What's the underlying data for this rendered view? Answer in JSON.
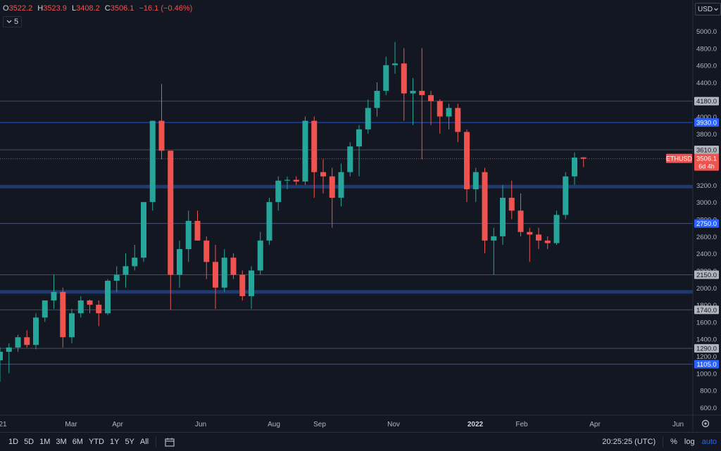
{
  "header": {
    "open_label": "O",
    "open": "3522.2",
    "high_label": "H",
    "high": "3523.9",
    "low_label": "L",
    "low": "3408.2",
    "close_label": "C",
    "close": "3506.1",
    "change": "−16.1 (−0.46%)",
    "indicator_count": "5",
    "currency": "USD"
  },
  "colors": {
    "background": "#131722",
    "up": "#26a69a",
    "down": "#ef5350",
    "grid": "#2a2e39",
    "thin_level": "#787b86",
    "blue_level": "#2962ff",
    "band_level": "#1e3a70"
  },
  "chart_data": {
    "type": "candlestick",
    "symbol": "ETHUSD",
    "y_range": [
      500,
      5200
    ],
    "y_ticks": [
      5000,
      4800,
      4600,
      4400,
      4200,
      4000,
      3800,
      3600,
      3400,
      3200,
      3000,
      2800,
      2600,
      2400,
      2200,
      2000,
      1800,
      1600,
      1400,
      1200,
      1000,
      800,
      600
    ],
    "x_labels": [
      "21",
      "Mar",
      "Apr",
      "Jun",
      "Aug",
      "Sep",
      "Nov",
      "2022",
      "Feb",
      "Apr",
      "Jun"
    ],
    "candles": [
      {
        "o": 1150,
        "h": 1300,
        "l": 900,
        "c": 1250
      },
      {
        "o": 1250,
        "h": 1350,
        "l": 1000,
        "c": 1300
      },
      {
        "o": 1300,
        "h": 1450,
        "l": 1250,
        "c": 1420
      },
      {
        "o": 1420,
        "h": 1500,
        "l": 1300,
        "c": 1330
      },
      {
        "o": 1330,
        "h": 1700,
        "l": 1280,
        "c": 1650
      },
      {
        "o": 1650,
        "h": 1850,
        "l": 1600,
        "c": 1850
      },
      {
        "o": 1850,
        "h": 2150,
        "l": 1750,
        "c": 1950
      },
      {
        "o": 1950,
        "h": 2000,
        "l": 1300,
        "c": 1420
      },
      {
        "o": 1420,
        "h": 1750,
        "l": 1350,
        "c": 1700
      },
      {
        "o": 1700,
        "h": 1900,
        "l": 1650,
        "c": 1850
      },
      {
        "o": 1850,
        "h": 1860,
        "l": 1700,
        "c": 1800
      },
      {
        "o": 1800,
        "h": 1850,
        "l": 1550,
        "c": 1700
      },
      {
        "o": 1700,
        "h": 2100,
        "l": 1680,
        "c": 2080
      },
      {
        "o": 2080,
        "h": 2250,
        "l": 1950,
        "c": 2150
      },
      {
        "o": 2150,
        "h": 2400,
        "l": 2000,
        "c": 2250
      },
      {
        "o": 2250,
        "h": 2500,
        "l": 2200,
        "c": 2350
      },
      {
        "o": 2350,
        "h": 3000,
        "l": 2300,
        "c": 3000
      },
      {
        "o": 3000,
        "h": 3950,
        "l": 2900,
        "c": 3950
      },
      {
        "o": 3950,
        "h": 4380,
        "l": 3500,
        "c": 3600
      },
      {
        "o": 3600,
        "h": 3600,
        "l": 1740,
        "c": 2150
      },
      {
        "o": 2150,
        "h": 2550,
        "l": 2000,
        "c": 2450
      },
      {
        "o": 2450,
        "h": 2900,
        "l": 2300,
        "c": 2780
      },
      {
        "o": 2780,
        "h": 2900,
        "l": 2550,
        "c": 2550
      },
      {
        "o": 2550,
        "h": 2600,
        "l": 2100,
        "c": 2300
      },
      {
        "o": 2300,
        "h": 2500,
        "l": 1750,
        "c": 2000
      },
      {
        "o": 2000,
        "h": 2450,
        "l": 1950,
        "c": 2350
      },
      {
        "o": 2350,
        "h": 2400,
        "l": 2100,
        "c": 2150
      },
      {
        "o": 2150,
        "h": 2200,
        "l": 1850,
        "c": 1900
      },
      {
        "o": 1900,
        "h": 2250,
        "l": 1750,
        "c": 2200
      },
      {
        "o": 2200,
        "h": 2650,
        "l": 2150,
        "c": 2550
      },
      {
        "o": 2550,
        "h": 3050,
        "l": 2500,
        "c": 3000
      },
      {
        "o": 3000,
        "h": 3300,
        "l": 2900,
        "c": 3250
      },
      {
        "o": 3250,
        "h": 3300,
        "l": 3150,
        "c": 3260
      },
      {
        "o": 3260,
        "h": 3300,
        "l": 3200,
        "c": 3240
      },
      {
        "o": 3240,
        "h": 4000,
        "l": 3200,
        "c": 3950
      },
      {
        "o": 3950,
        "h": 4000,
        "l": 3050,
        "c": 3350
      },
      {
        "o": 3350,
        "h": 3500,
        "l": 3100,
        "c": 3300
      },
      {
        "o": 3300,
        "h": 3400,
        "l": 2700,
        "c": 3050
      },
      {
        "o": 3050,
        "h": 3450,
        "l": 2950,
        "c": 3350
      },
      {
        "o": 3350,
        "h": 3700,
        "l": 3300,
        "c": 3650
      },
      {
        "o": 3650,
        "h": 3900,
        "l": 3300,
        "c": 3850
      },
      {
        "o": 3850,
        "h": 4200,
        "l": 3800,
        "c": 4100
      },
      {
        "o": 4100,
        "h": 4400,
        "l": 4000,
        "c": 4300
      },
      {
        "o": 4300,
        "h": 4700,
        "l": 4250,
        "c": 4600
      },
      {
        "o": 4600,
        "h": 4870,
        "l": 4500,
        "c": 4620
      },
      {
        "o": 4620,
        "h": 4800,
        "l": 3950,
        "c": 4270
      },
      {
        "o": 4270,
        "h": 4450,
        "l": 3900,
        "c": 4300
      },
      {
        "o": 4300,
        "h": 4800,
        "l": 3500,
        "c": 4250
      },
      {
        "o": 4250,
        "h": 4300,
        "l": 3900,
        "c": 4180
      },
      {
        "o": 4180,
        "h": 4200,
        "l": 3800,
        "c": 4000
      },
      {
        "o": 4000,
        "h": 4150,
        "l": 3850,
        "c": 4100
      },
      {
        "o": 4100,
        "h": 4150,
        "l": 3700,
        "c": 3820
      },
      {
        "o": 3820,
        "h": 3850,
        "l": 3000,
        "c": 3150
      },
      {
        "o": 3150,
        "h": 3400,
        "l": 3000,
        "c": 3350
      },
      {
        "o": 3350,
        "h": 3400,
        "l": 2400,
        "c": 2550
      },
      {
        "o": 2550,
        "h": 2700,
        "l": 2150,
        "c": 2600
      },
      {
        "o": 2600,
        "h": 3200,
        "l": 2500,
        "c": 3050
      },
      {
        "o": 3050,
        "h": 3250,
        "l": 2800,
        "c": 2900
      },
      {
        "o": 2900,
        "h": 3100,
        "l": 2600,
        "c": 2650
      },
      {
        "o": 2650,
        "h": 2700,
        "l": 2300,
        "c": 2620
      },
      {
        "o": 2620,
        "h": 2700,
        "l": 2450,
        "c": 2550
      },
      {
        "o": 2550,
        "h": 2600,
        "l": 2450,
        "c": 2520
      },
      {
        "o": 2520,
        "h": 2900,
        "l": 2500,
        "c": 2850
      },
      {
        "o": 2850,
        "h": 3350,
        "l": 2800,
        "c": 3300
      },
      {
        "o": 3300,
        "h": 3580,
        "l": 3200,
        "c": 3520
      },
      {
        "o": 3522.2,
        "h": 3523.9,
        "l": 3408.2,
        "c": 3506.1
      }
    ],
    "levels": [
      {
        "value": 4180,
        "label": "4180.0",
        "style": "thin"
      },
      {
        "value": 3930,
        "label": "3930.0",
        "style": "blue"
      },
      {
        "value": 3610,
        "label": "3610.0",
        "style": "thin"
      },
      {
        "value": 3180,
        "label": "",
        "style": "band"
      },
      {
        "value": 2750,
        "label": "2750.0",
        "style": "blue"
      },
      {
        "value": 2150,
        "label": "2150.0",
        "style": "thin"
      },
      {
        "value": 1950,
        "label": "",
        "style": "band"
      },
      {
        "value": 1740,
        "label": "1740.0",
        "style": "thin"
      },
      {
        "value": 1290,
        "label": "1290.0",
        "style": "thin"
      },
      {
        "value": 1105,
        "label": "1105.0",
        "style": "blue"
      }
    ],
    "last_price": {
      "symbol": "ETHUSD",
      "value": "3506.1",
      "countdown": "6d 4h"
    }
  },
  "toolbar": {
    "timeframes": [
      "1D",
      "5D",
      "1M",
      "3M",
      "6M",
      "YTD",
      "1Y",
      "5Y",
      "All"
    ],
    "clock": "20:25:25 (UTC)",
    "percent": "%",
    "log": "log",
    "auto": "auto"
  }
}
